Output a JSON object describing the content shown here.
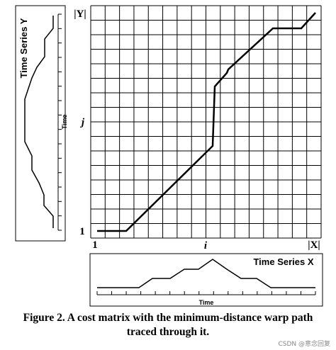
{
  "matrix": {
    "y_top": "|Y|",
    "y_mid": "j",
    "y_bottom": "1",
    "x_left": "1",
    "x_mid": "i",
    "x_right": "|X|"
  },
  "series_y": {
    "title": "Time Series Y",
    "axis": "Time"
  },
  "series_x": {
    "title": "Time Series X",
    "axis": "Time"
  },
  "caption": [
    "Figure 2. A cost matrix with the minimum-distance warp path",
    "traced through it."
  ],
  "watermark": "CSDN @意念回复"
}
